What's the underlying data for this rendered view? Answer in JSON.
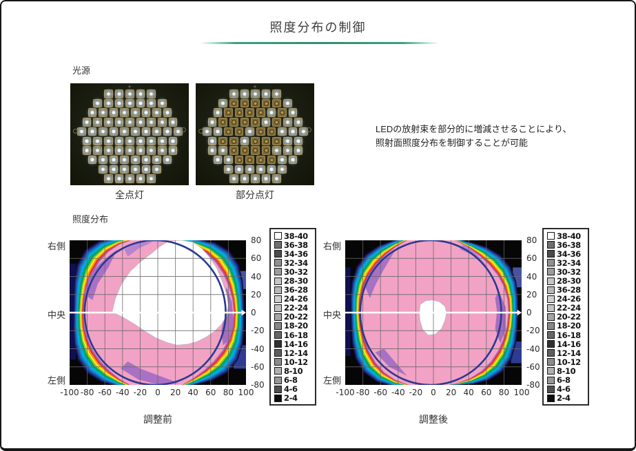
{
  "page": {
    "title": "照度分布の制御"
  },
  "light_source": {
    "label": "光源",
    "photos": [
      {
        "caption": "全点灯",
        "pattern": [
          "BBBBB",
          "BBBBBBB",
          "BBBBBBBB",
          "BBBBBBBBB",
          "BBBBBBBBBB",
          "BBBBBBBBB",
          "BBBBBBBBB",
          "BBBBBBBB",
          "BBBBBB",
          "BBBBB"
        ]
      },
      {
        "caption": "部分点灯",
        "pattern": [
          "BBBBB",
          "BDDDDDB",
          "BDDDDBDB",
          "BDDDDBDBB",
          "BBDDBDDBBB",
          "BDDBDDDBB",
          "BBDDDDBBB",
          "BBDDDDBB",
          "BBBBBB",
          "BBBBB"
        ]
      }
    ]
  },
  "description": {
    "lines": [
      "LEDの放射束を部分的に増減させることにより、",
      "照射面照度分布を制御することが可能"
    ]
  },
  "illuminance": {
    "label": "照度分布"
  },
  "chart_data": [
    {
      "type": "heatmap",
      "title": "調整前",
      "xlim": [
        -100,
        100
      ],
      "ylim": [
        -80,
        80
      ],
      "x_ticks": [
        -100,
        -80,
        -60,
        -40,
        -20,
        0,
        20,
        40,
        60,
        80,
        100
      ],
      "y_ticks": [
        80,
        60,
        40,
        20,
        0,
        -20,
        -40,
        -60,
        -80
      ],
      "side_labels": [
        "右側",
        "中央",
        "左側"
      ],
      "legend_bands": [
        {
          "range": "38-40",
          "swatch": "#ffffff"
        },
        {
          "range": "36-38",
          "swatch": "#6e6e6e"
        },
        {
          "range": "34-36",
          "swatch": "#4b4b4b"
        },
        {
          "range": "32-34",
          "swatch": "#909090"
        },
        {
          "range": "30-32",
          "swatch": "#9c9c9c"
        },
        {
          "range": "28-30",
          "swatch": "#c6c6c6"
        },
        {
          "range": "36-28",
          "swatch": "#b8b8b8"
        },
        {
          "range": "24-26",
          "swatch": "#cfcfcf"
        },
        {
          "range": "22-24",
          "swatch": "#c2c2c2"
        },
        {
          "range": "20-22",
          "swatch": "#a5a5a5"
        },
        {
          "range": "18-20",
          "swatch": "#878787"
        },
        {
          "range": "16-18",
          "swatch": "#676767"
        },
        {
          "range": "14-16",
          "swatch": "#303030"
        },
        {
          "range": "12-14",
          "swatch": "#5e5e5e"
        },
        {
          "range": "10-12",
          "swatch": "#8c8c8c"
        },
        {
          "range": "8-10",
          "swatch": "#b0b0b0"
        },
        {
          "range": "6-8",
          "swatch": "#979797"
        },
        {
          "range": "4-6",
          "swatch": "#4f4f4f"
        },
        {
          "range": "2-4",
          "swatch": "#0d0d0d"
        }
      ],
      "palette": [
        "#12124f",
        "#27348b",
        "#1b63b0",
        "#0d8ecf",
        "#00aeef",
        "#00a79b",
        "#00a551",
        "#8cc63e",
        "#fff200",
        "#f7941e",
        "#ee2d24",
        "#a864c0",
        "#f2a2c5"
      ],
      "overlay": {
        "circle_color": "#2b3990",
        "arrow_color": "#ffffff",
        "grid_color": "#666666"
      },
      "summary": "調整前:中央〜右寄りに38-40(白)の高照度領域が広く分布し、その周囲をピンクの中間照度域と虹色の等照度帯が段階的に取り囲む"
    },
    {
      "type": "heatmap",
      "title": "調整後",
      "xlim": [
        -100,
        100
      ],
      "ylim": [
        -80,
        80
      ],
      "x_ticks": [
        -100,
        -80,
        -60,
        -40,
        -20,
        0,
        20,
        40,
        60,
        80,
        100
      ],
      "y_ticks": [
        80,
        60,
        40,
        20,
        0,
        -20,
        -40,
        -60,
        -80
      ],
      "side_labels": [
        "右側",
        "中央",
        "左側"
      ],
      "legend_bands": [
        {
          "range": "38-40",
          "swatch": "#ffffff"
        },
        {
          "range": "36-38",
          "swatch": "#6e6e6e"
        },
        {
          "range": "34-36",
          "swatch": "#4b4b4b"
        },
        {
          "range": "32-34",
          "swatch": "#909090"
        },
        {
          "range": "30-32",
          "swatch": "#9c9c9c"
        },
        {
          "range": "28-30",
          "swatch": "#c6c6c6"
        },
        {
          "range": "36-28",
          "swatch": "#b8b8b8"
        },
        {
          "range": "24-26",
          "swatch": "#cfcfcf"
        },
        {
          "range": "22-24",
          "swatch": "#c2c2c2"
        },
        {
          "range": "20-22",
          "swatch": "#a5a5a5"
        },
        {
          "range": "18-20",
          "swatch": "#878787"
        },
        {
          "range": "16-18",
          "swatch": "#676767"
        },
        {
          "range": "14-16",
          "swatch": "#303030"
        },
        {
          "range": "12-14",
          "swatch": "#5e5e5e"
        },
        {
          "range": "10-12",
          "swatch": "#8c8c8c"
        },
        {
          "range": "8-10",
          "swatch": "#b0b0b0"
        },
        {
          "range": "6-8",
          "swatch": "#979797"
        },
        {
          "range": "4-6",
          "swatch": "#4f4f4f"
        },
        {
          "range": "2-4",
          "swatch": "#0d0d0d"
        }
      ],
      "palette": [
        "#12124f",
        "#27348b",
        "#1b63b0",
        "#0d8ecf",
        "#00aeef",
        "#00a79b",
        "#00a551",
        "#8cc63e",
        "#fff200",
        "#f7941e",
        "#ee2d24",
        "#a864c0",
        "#f2a2c5"
      ],
      "overlay": {
        "circle_color": "#2b3990",
        "arrow_color": "#ffffff",
        "grid_color": "#666666"
      },
      "summary": "調整後:照射面のほぼ全域が均一なピンクの中間照度域となり、中央付近の38-40(白)領域は小さく縮小"
    }
  ]
}
